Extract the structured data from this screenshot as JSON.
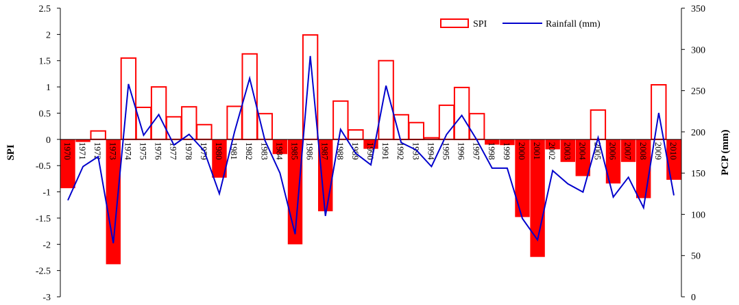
{
  "chart_data": {
    "type": "bar",
    "title": "",
    "categories": [
      "1970",
      "1971",
      "1972",
      "1973",
      "1974",
      "1975",
      "1976",
      "1977",
      "1978",
      "1979",
      "1980",
      "1981",
      "1982",
      "1983",
      "1984",
      "1985",
      "1986",
      "1987",
      "1988",
      "1989",
      "1990",
      "1991",
      "1992",
      "1993",
      "1994",
      "1995",
      "1996",
      "1997",
      "1998",
      "1999",
      "2000",
      "2001",
      "2002",
      "2003",
      "2004",
      "2005",
      "2006",
      "2007",
      "2008",
      "2009",
      "2010"
    ],
    "series": [
      {
        "name": "SPI",
        "axis": "left",
        "style": "bar",
        "positive_style": "outlined",
        "negative_style": "filled",
        "color": "#ff0000",
        "values": [
          -0.93,
          -0.05,
          0.16,
          -2.38,
          1.55,
          0.61,
          1.0,
          0.43,
          0.62,
          0.28,
          -0.73,
          0.63,
          1.63,
          0.49,
          -0.28,
          -2.0,
          1.99,
          -1.37,
          0.73,
          0.18,
          -0.18,
          1.5,
          0.47,
          0.32,
          0.03,
          0.65,
          0.99,
          0.49,
          -0.1,
          -0.11,
          -1.48,
          -2.24,
          -0.19,
          -0.43,
          -0.7,
          0.56,
          -0.84,
          -0.43,
          -1.12,
          1.04,
          -0.77
        ]
      },
      {
        "name": "Rainfall (mm)",
        "axis": "right",
        "style": "line",
        "color": "#0000cc",
        "values": [
          117,
          158,
          170,
          65,
          258,
          196,
          221,
          184,
          197,
          177,
          125,
          200,
          265,
          190,
          150,
          76,
          292,
          98,
          203,
          174,
          160,
          256,
          187,
          178,
          158,
          197,
          220,
          190,
          156,
          156,
          95,
          69,
          153,
          137,
          127,
          193,
          121,
          145,
          108,
          223,
          123
        ]
      }
    ],
    "y_left": {
      "label": "SPI",
      "min": -3,
      "max": 2.5,
      "ticks": [
        "2.5",
        "2",
        "1.5",
        "1",
        "0.5",
        "0",
        "-0.5",
        "-1",
        "-1.5",
        "-2",
        "-2.5",
        "-3"
      ]
    },
    "y_right": {
      "label": "PCP (mm)",
      "min": 0,
      "max": 350,
      "ticks": [
        "350",
        "300",
        "250",
        "200",
        "150",
        "100",
        "50",
        "0"
      ]
    },
    "legend": {
      "position": "top-right",
      "items": [
        "SPI",
        "Rainfall (mm)"
      ]
    },
    "grid": false
  }
}
